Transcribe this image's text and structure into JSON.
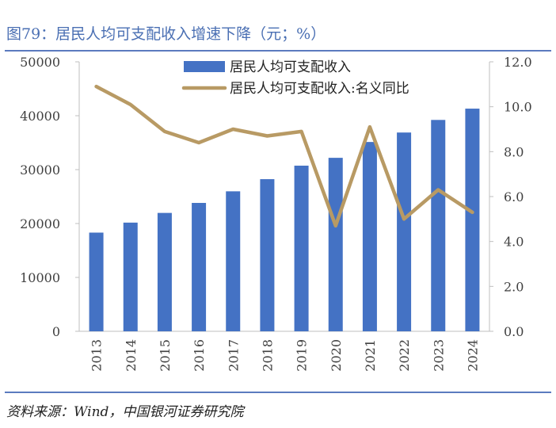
{
  "title": "图79：居民人均可支配收入增速下降（元；%）",
  "source": "资料来源：Wind，中国银河证券研究院",
  "chart_data": {
    "type": "bar",
    "categories": [
      "2013",
      "2014",
      "2015",
      "2016",
      "2017",
      "2018",
      "2019",
      "2020",
      "2021",
      "2022",
      "2023",
      "2024"
    ],
    "series": [
      {
        "name": "居民人均可支配收入",
        "type": "bar",
        "axis": "left",
        "color": "#4472c4",
        "values": [
          18311,
          20167,
          21966,
          23821,
          25974,
          28228,
          30733,
          32189,
          35128,
          36883,
          39218,
          41314
        ]
      },
      {
        "name": "居民人均可支配收入:名义同比",
        "type": "line",
        "axis": "right",
        "color": "#b89a64",
        "values": [
          10.9,
          10.1,
          8.9,
          8.4,
          9.0,
          8.7,
          8.9,
          4.7,
          9.1,
          5.0,
          6.3,
          5.3
        ]
      }
    ],
    "y_left": {
      "ylim": [
        0,
        50000
      ],
      "ticks": [
        "0",
        "10000",
        "20000",
        "30000",
        "40000",
        "50000"
      ]
    },
    "y_right": {
      "ylim": [
        0,
        12
      ],
      "ticks": [
        "0.0",
        "2.0",
        "4.0",
        "6.0",
        "8.0",
        "10.0",
        "12.0"
      ]
    },
    "legend_position": "top-center",
    "grid": false
  }
}
